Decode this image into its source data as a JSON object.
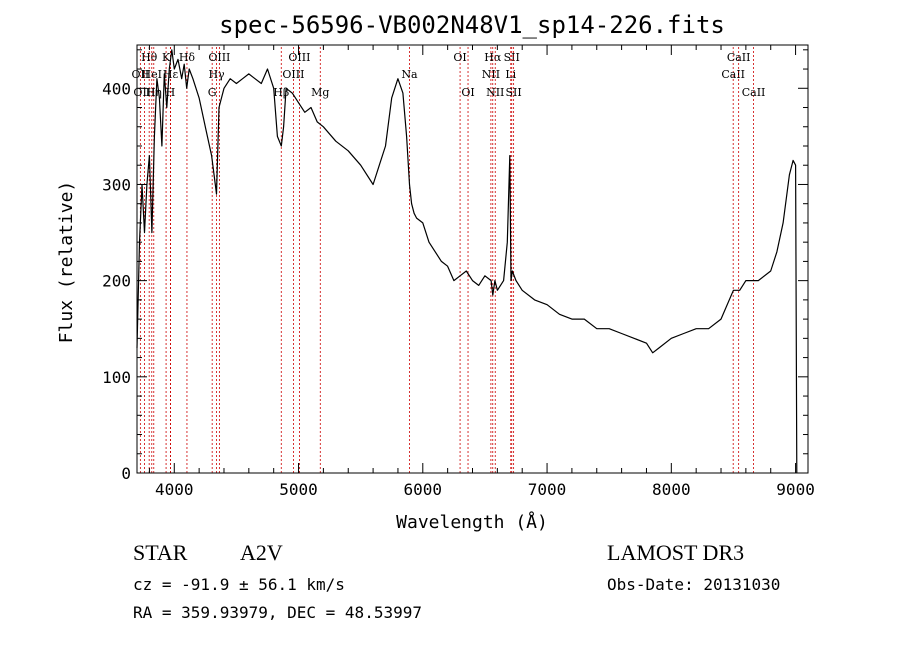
{
  "chart_data": {
    "type": "line",
    "title": "spec-56596-VB002N48V1_sp14-226.fits",
    "xlabel": "Wavelength (Å)",
    "ylabel": "Flux (relative)",
    "xlim": [
      3700,
      9100
    ],
    "ylim": [
      0,
      445
    ],
    "xticks": [
      4000,
      5000,
      6000,
      7000,
      8000,
      9000
    ],
    "yticks": [
      0,
      100,
      200,
      300,
      400
    ],
    "line_color": "#000000",
    "marker_color": "#cc0000",
    "series": [
      {
        "name": "spectrum",
        "x": [
          3700,
          3720,
          3740,
          3760,
          3780,
          3800,
          3820,
          3840,
          3860,
          3880,
          3900,
          3920,
          3940,
          3960,
          3980,
          4000,
          4030,
          4060,
          4080,
          4100,
          4120,
          4150,
          4200,
          4250,
          4300,
          4330,
          4340,
          4360,
          4380,
          4400,
          4450,
          4500,
          4550,
          4600,
          4650,
          4700,
          4750,
          4800,
          4830,
          4861,
          4880,
          4900,
          4950,
          5000,
          5050,
          5100,
          5150,
          5200,
          5300,
          5400,
          5500,
          5600,
          5650,
          5700,
          5750,
          5800,
          5840,
          5870,
          5893,
          5910,
          5930,
          5950,
          6000,
          6050,
          6100,
          6150,
          6200,
          6250,
          6300,
          6350,
          6400,
          6450,
          6500,
          6550,
          6563,
          6580,
          6600,
          6650,
          6680,
          6700,
          6710,
          6720,
          6750,
          6800,
          6900,
          7000,
          7100,
          7200,
          7300,
          7400,
          7500,
          7600,
          7700,
          7800,
          7850,
          7900,
          8000,
          8100,
          8200,
          8300,
          8400,
          8500,
          8550,
          8600,
          8700,
          8800,
          8850,
          8900,
          8950,
          8980,
          9000,
          9010
        ],
        "y": [
          130,
          240,
          300,
          250,
          300,
          330,
          250,
          350,
          410,
          390,
          340,
          415,
          380,
          420,
          440,
          420,
          430,
          410,
          425,
          400,
          420,
          410,
          390,
          360,
          330,
          300,
          290,
          380,
          390,
          400,
          410,
          405,
          410,
          415,
          410,
          405,
          420,
          400,
          350,
          340,
          360,
          400,
          395,
          385,
          375,
          380,
          365,
          360,
          345,
          335,
          320,
          300,
          320,
          340,
          390,
          410,
          395,
          350,
          300,
          280,
          270,
          265,
          260,
          240,
          230,
          220,
          215,
          200,
          205,
          210,
          200,
          195,
          205,
          200,
          185,
          200,
          190,
          200,
          240,
          330,
          200,
          210,
          200,
          190,
          180,
          175,
          165,
          160,
          160,
          150,
          150,
          145,
          140,
          135,
          125,
          130,
          140,
          145,
          150,
          150,
          160,
          190,
          190,
          200,
          200,
          210,
          230,
          260,
          310,
          325,
          320,
          0
        ]
      }
    ],
    "lines": [
      {
        "label": "Hθ",
        "wl": 3798,
        "row": 1
      },
      {
        "label": "OII",
        "wl": 3727,
        "row": 2
      },
      {
        "label": "OIII",
        "wl": 3760,
        "row": 3
      },
      {
        "label": "Hη",
        "wl": 3835,
        "row": 3
      },
      {
        "label": "HeI",
        "wl": 3819,
        "row": 2
      },
      {
        "label": "K",
        "wl": 3934,
        "row": 1
      },
      {
        "label": "H",
        "wl": 3969,
        "row": 3
      },
      {
        "label": "Hε",
        "wl": 3970,
        "row": 2
      },
      {
        "label": "Hδ",
        "wl": 4102,
        "row": 1
      },
      {
        "label": "G",
        "wl": 4305,
        "row": 3
      },
      {
        "label": "Hγ",
        "wl": 4340,
        "row": 2
      },
      {
        "label": "OIII",
        "wl": 4363,
        "row": 1
      },
      {
        "label": "Hβ",
        "wl": 4861,
        "row": 3
      },
      {
        "label": "OIII",
        "wl": 4959,
        "row": 2
      },
      {
        "label": "OIII",
        "wl": 5007,
        "row": 1
      },
      {
        "label": "Mg",
        "wl": 5175,
        "row": 3
      },
      {
        "label": "Na",
        "wl": 5893,
        "row": 2
      },
      {
        "label": "OI",
        "wl": 6300,
        "row": 1
      },
      {
        "label": "OI",
        "wl": 6364,
        "row": 3
      },
      {
        "label": "NII",
        "wl": 6548,
        "row": 2
      },
      {
        "label": "Hα",
        "wl": 6563,
        "row": 1
      },
      {
        "label": "NII",
        "wl": 6583,
        "row": 3
      },
      {
        "label": "SII",
        "wl": 6716,
        "row": 1
      },
      {
        "label": "Li",
        "wl": 6708,
        "row": 2
      },
      {
        "label": "SII",
        "wl": 6731,
        "row": 3
      },
      {
        "label": "CaII",
        "wl": 8498,
        "row": 2
      },
      {
        "label": "CaII",
        "wl": 8542,
        "row": 1
      },
      {
        "label": "CaII",
        "wl": 8662,
        "row": 3
      }
    ]
  },
  "info": {
    "object_class": "STAR",
    "subclass": "A2V",
    "survey": "LAMOST DR3",
    "cz_text": "cz = -91.9 ± 56.1 km/s",
    "obs_date_text": "Obs-Date: 20131030",
    "radec_text": "RA = 359.93979, DEC =  48.53997"
  }
}
